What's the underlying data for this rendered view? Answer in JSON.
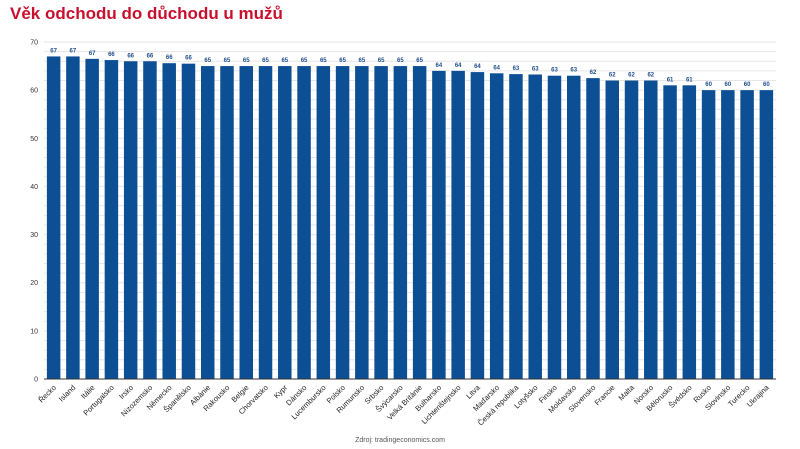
{
  "title": "Věk odchodu do důchodu u mužů",
  "source": "Zdroj: tradingeconomics.com",
  "colors": {
    "bar": "#0d4f94",
    "title": "#c8102e",
    "data_label": "#1f4e8c"
  },
  "chart_data": {
    "type": "bar",
    "title": "Věk odchodu do důchodu u mužů",
    "xlabel": "",
    "ylabel": "",
    "ylim": [
      0,
      70
    ],
    "yticks": [
      0,
      10,
      20,
      30,
      40,
      50,
      60,
      70
    ],
    "grid": true,
    "legend": "none",
    "categories": [
      "Řecko",
      "Island",
      "Itálie",
      "Portugalsko",
      "Irsko",
      "Nizozemsko",
      "Německo",
      "Španělsko",
      "Albánie",
      "Rakousko",
      "Belgie",
      "Chorvatsko",
      "Kypr",
      "Dánsko",
      "Lucembursko",
      "Polsko",
      "Rumunsko",
      "Srbsko",
      "Švýcarsko",
      "Velká Británie",
      "Bulharsko",
      "Lichtenštejnsko",
      "Litva",
      "Maďarsko",
      "Česká republika",
      "Lotyšsko",
      "Finsko",
      "Moldavsko",
      "Slovensko",
      "Francie",
      "Malta",
      "Norsko",
      "Bělorusko",
      "Švédsko",
      "Rusko",
      "Slovinsko",
      "Turecko",
      "Ukrajina"
    ],
    "values": [
      67,
      67,
      66.5,
      66.25,
      66,
      66,
      65.6,
      65.5,
      65,
      65,
      65,
      65,
      65,
      65,
      65,
      65,
      65,
      65,
      65,
      65,
      64,
      64,
      63.75,
      63.5,
      63.33,
      63.25,
      63,
      63,
      62.5,
      62,
      62,
      62,
      61,
      61,
      60,
      60,
      60,
      60
    ],
    "data_labels": [
      "67",
      "67",
      "67",
      "66",
      "66",
      "66",
      "66",
      "66",
      "65",
      "65",
      "65",
      "65",
      "65",
      "65",
      "65",
      "65",
      "65",
      "65",
      "65",
      "65",
      "64",
      "64",
      "64",
      "64",
      "63",
      "63",
      "63",
      "63",
      "62",
      "62",
      "62",
      "62",
      "61",
      "61",
      "60",
      "60",
      "60",
      "60"
    ]
  }
}
